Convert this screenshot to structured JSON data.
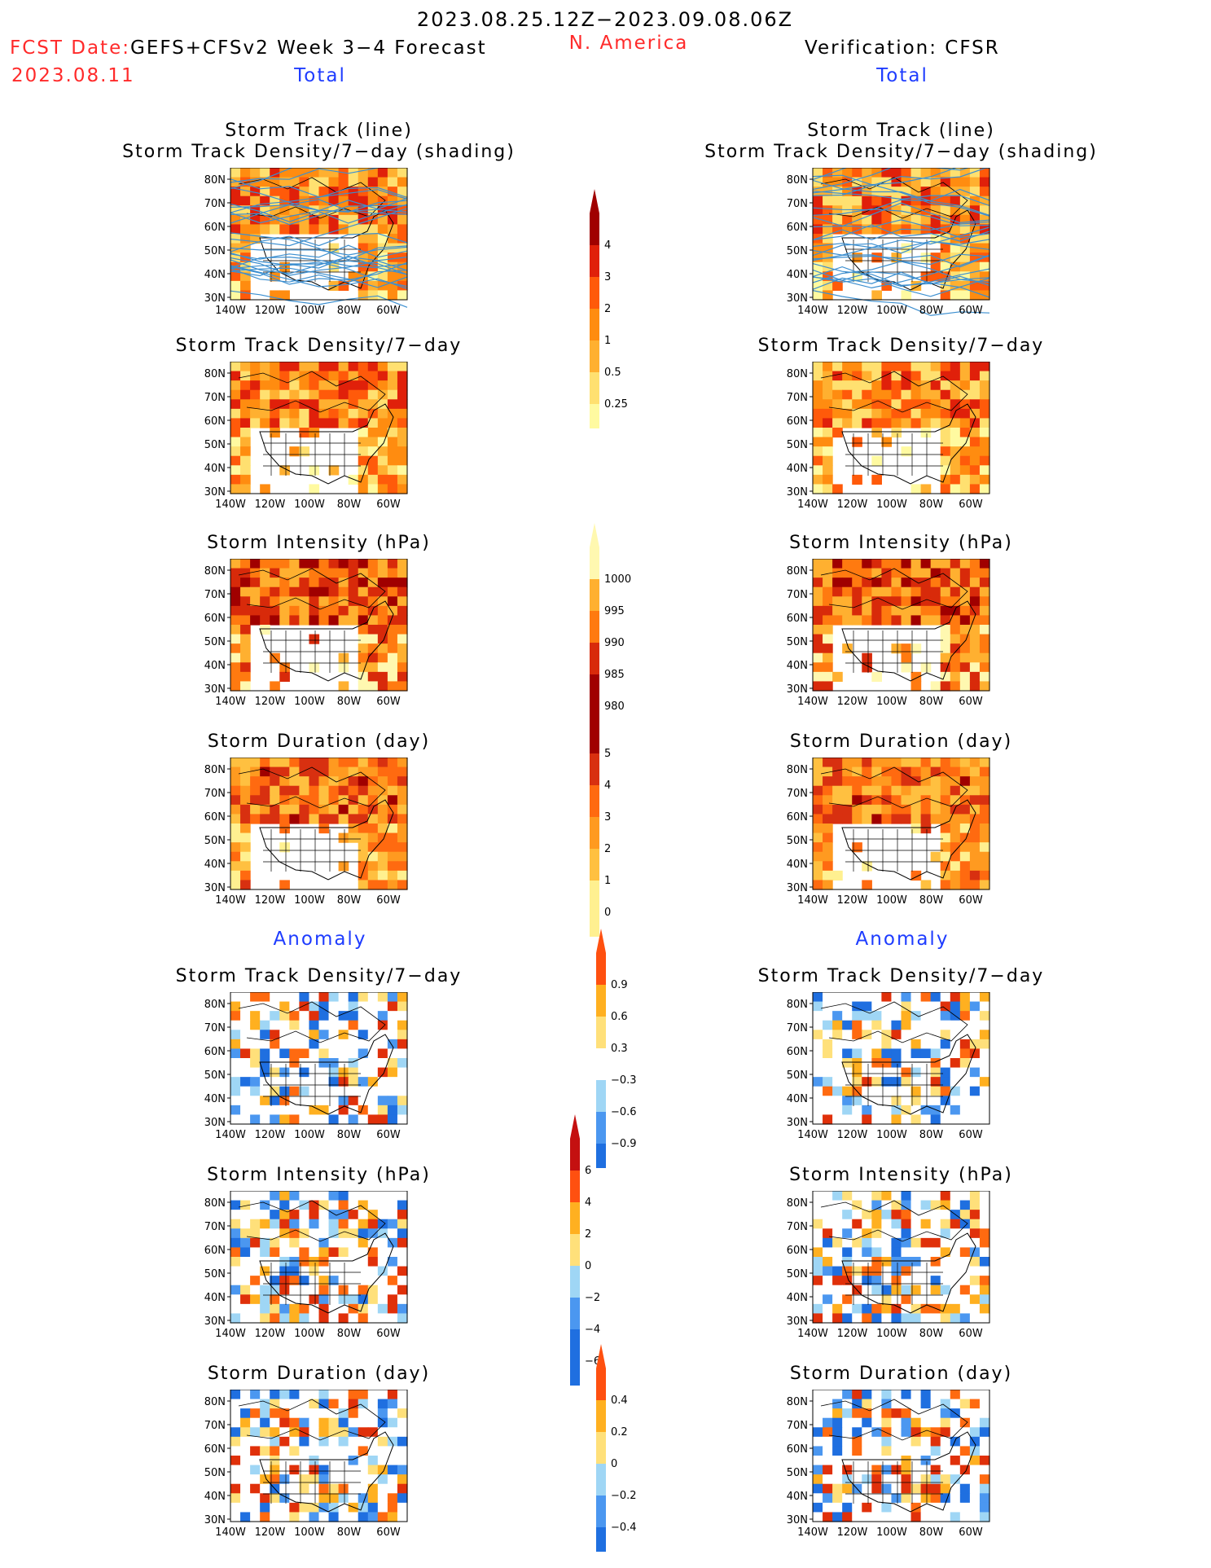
{
  "header": {
    "period": "2023.08.25.12Z−2023.09.08.06Z",
    "fcst_label": "FCST Date:",
    "model": "GEFS+CFSv2 Week 3−4 Forecast",
    "fcst_date": "2023.08.11",
    "region": "N. America",
    "verification": "Verification: CFSR",
    "left_section": "Total",
    "right_section": "Total"
  },
  "anomaly": {
    "left": "Anomaly",
    "right": "Anomaly"
  },
  "titles": {
    "track_line": "Storm Track (line)",
    "track_shading": "Storm Track Density/7−day (shading)",
    "density": "Storm Track Density/7−day",
    "intensity": "Storm Intensity (hPa)",
    "duration": "Storm Duration (day)"
  },
  "axes": {
    "lat": [
      "80N",
      "70N",
      "60N",
      "50N",
      "40N",
      "30N"
    ],
    "lon": [
      "140W",
      "120W",
      "100W",
      "80W",
      "60W"
    ]
  },
  "colorbars": {
    "density_total": [
      "4",
      "3",
      "2",
      "1",
      "0.5",
      "0.25"
    ],
    "intensity_total": [
      "1000",
      "995",
      "990",
      "985",
      "980"
    ],
    "duration_total": [
      "5",
      "4",
      "3",
      "2",
      "1",
      "0"
    ],
    "density_anom": [
      "0.9",
      "0.6",
      "0.3",
      "−0.3",
      "−0.6",
      "−0.9"
    ],
    "intensity_anom": [
      "6",
      "4",
      "2",
      "0",
      "−2",
      "−4",
      "−6"
    ],
    "duration_anom": [
      "0.4",
      "0.2",
      "0",
      "−0.2",
      "−0.4"
    ]
  },
  "colors": {
    "title_red": "#ff2a2a",
    "title_blue": "#1e3cff",
    "track_line": "#3c8fd0"
  }
}
